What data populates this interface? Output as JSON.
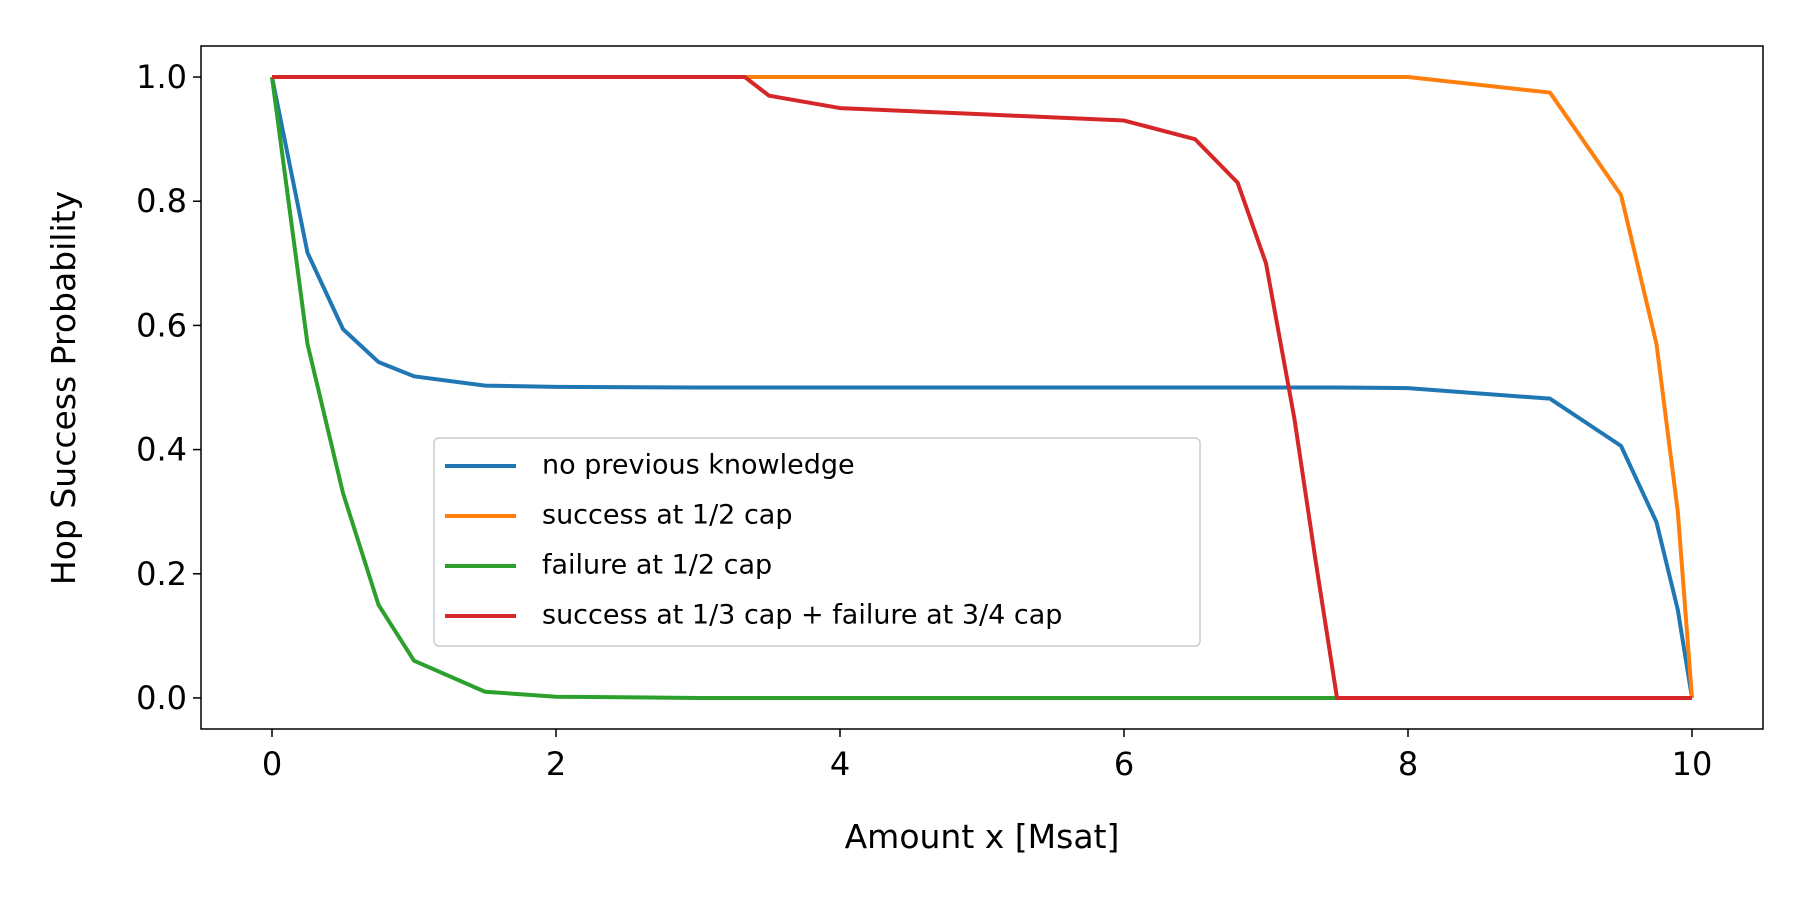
{
  "chart_data": {
    "type": "line",
    "xlabel": "Amount x [Msat]",
    "ylabel": "Hop Success Probability",
    "x": [
      0,
      0.25,
      0.5,
      0.75,
      1,
      1.5,
      2,
      3,
      3.33,
      3.5,
      4,
      5,
      6,
      6.5,
      6.8,
      7,
      7.2,
      7.35,
      7.5,
      8,
      9,
      9.5,
      9.75,
      9.9,
      10
    ],
    "series": [
      {
        "name": "no previous knowledge",
        "color": "#1f77b4",
        "values": [
          1,
          0.717,
          0.594,
          0.541,
          0.518,
          0.503,
          0.501,
          0.5,
          0.5,
          0.5,
          0.5,
          0.5,
          0.5,
          0.5,
          0.5,
          0.5,
          0.5,
          0.5,
          0.5,
          0.499,
          0.482,
          0.406,
          0.283,
          0.142,
          0
        ]
      },
      {
        "name": "success at 1/2 cap",
        "color": "#ff7f0e",
        "values": [
          1,
          1,
          1,
          1,
          1,
          1,
          1,
          1,
          1,
          1,
          1,
          1,
          1,
          1,
          1,
          1,
          1,
          1,
          1,
          1,
          0.975,
          0.81,
          0.57,
          0.3,
          0
        ]
      },
      {
        "name": "failure at 1/2 cap",
        "color": "#2ca02c",
        "values": [
          1,
          0.57,
          0.33,
          0.15,
          0.06,
          0.01,
          0.002,
          0,
          0,
          0,
          0,
          0,
          0,
          0,
          0,
          0,
          0,
          0,
          0,
          null,
          null,
          null,
          null,
          null,
          null
        ]
      },
      {
        "name": "success at 1/3 cap + failure at 3/4 cap",
        "color": "#d62728",
        "values": [
          1,
          1,
          1,
          1,
          1,
          1,
          1,
          1,
          1,
          0.97,
          0.95,
          0.94,
          0.93,
          0.9,
          0.83,
          0.7,
          0.45,
          0.22,
          0,
          0,
          0,
          0,
          0,
          0,
          0
        ]
      }
    ],
    "xlim": [
      -0.5,
      10.5
    ],
    "xticks": [
      0,
      2,
      4,
      6,
      8,
      10
    ],
    "ylim": [
      -0.05,
      1.05
    ],
    "yticks": [
      {
        "value": 0,
        "label": "0.0"
      },
      0.2,
      0.4,
      0.6,
      0.8,
      {
        "value": 1,
        "label": "1.0"
      }
    ],
    "grid": false
  }
}
